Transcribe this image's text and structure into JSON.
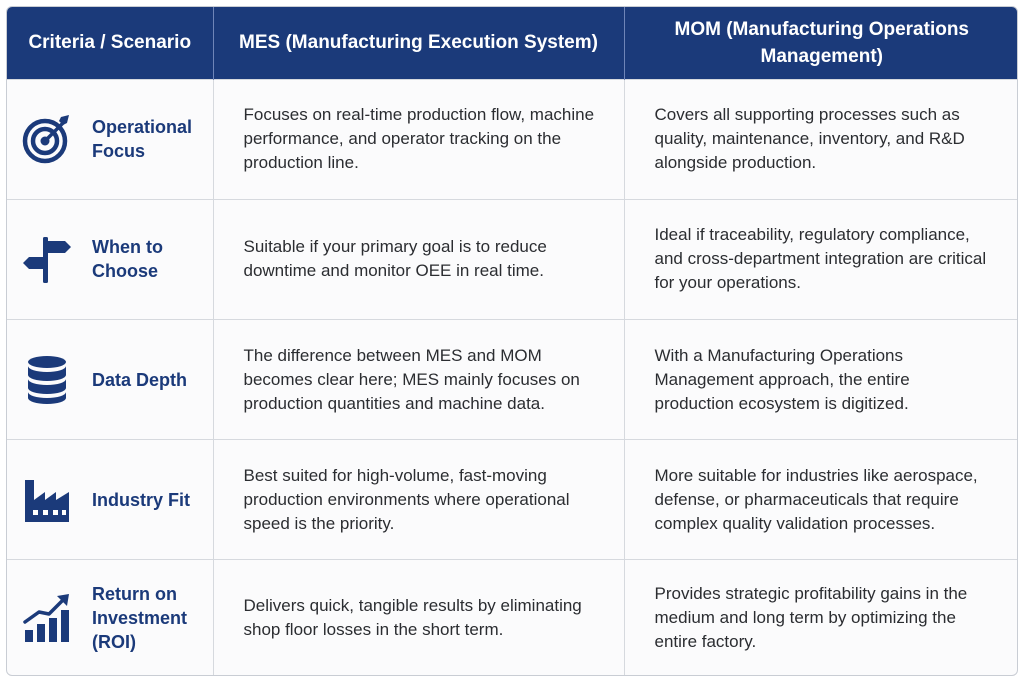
{
  "header": {
    "col1": "Criteria / Scenario",
    "col2": "MES (Manufacturing Execution System)",
    "col3": "MOM (Manufacturing Operations Management)"
  },
  "rows": [
    {
      "icon": "target-icon",
      "criteria": "Operational Focus",
      "mes": "Focuses on real-time production flow, machine performance, and operator tracking on the production line.",
      "mom": "Covers all supporting processes such as quality, maintenance, inventory, and R&D alongside production."
    },
    {
      "icon": "signpost-icon",
      "criteria": "When to Choose",
      "mes": "Suitable if your primary goal is to reduce downtime and monitor OEE in real time.",
      "mom": "Ideal if traceability, regulatory compliance, and cross-department integration are critical for your operations."
    },
    {
      "icon": "database-icon",
      "criteria": "Data Depth",
      "mes": "The difference between MES and MOM becomes clear here; MES mainly focuses on production quantities and machine data.",
      "mom": "With a Manufacturing Operations Management approach, the entire production ecosystem is digitized."
    },
    {
      "icon": "factory-icon",
      "criteria": "Industry Fit",
      "mes": "Best suited for high-volume, fast-moving production environments where operational speed is the priority.",
      "mom": "More suitable for industries like aerospace, defense, or pharmaceuticals that require complex quality validation processes."
    },
    {
      "icon": "growth-chart-icon",
      "criteria": "Return on Investment (ROI)",
      "mes": "Delivers quick, tangible results by eliminating shop floor losses in the short term.",
      "mom": "Provides strategic profitability gains in the medium and long term by optimizing the entire factory."
    }
  ],
  "colors": {
    "header_bg": "#1b3a7a",
    "accent": "#1b3a7a",
    "border": "#d6d9de"
  }
}
